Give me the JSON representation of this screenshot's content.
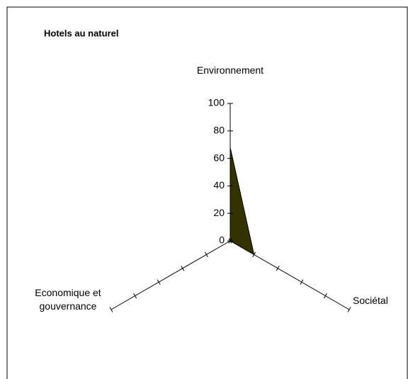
{
  "chart_data": {
    "type": "radar",
    "title": "Hotels au naturel",
    "categories": [
      "Environnement",
      "Sociétal",
      "Economique et gouvernance"
    ],
    "series": [
      {
        "name": "Hotels au naturel",
        "color": "#333300",
        "values": [
          68,
          20,
          0
        ]
      }
    ],
    "ylim": [
      0,
      100
    ],
    "yticks": [
      0,
      20,
      40,
      60,
      80,
      100
    ]
  }
}
